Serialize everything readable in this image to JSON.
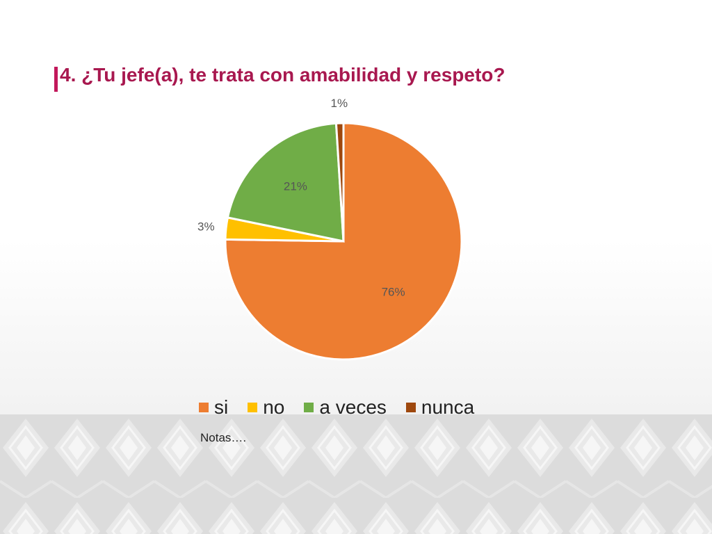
{
  "slide": {
    "title": "4. ¿Tu jefe(a), te trata con amabilidad y respeto?",
    "notes": "Notas…."
  },
  "colors": {
    "accent": "#c2185b",
    "title": "#a8184f",
    "si": "#ed7d31",
    "no": "#ffc000",
    "a_veces": "#70ad47",
    "nunca": "#9e480e"
  },
  "chart_data": {
    "type": "pie",
    "title": "",
    "categories": [
      "si",
      "no",
      "a veces",
      "nunca"
    ],
    "values": [
      76,
      3,
      21,
      1
    ],
    "value_labels": [
      "76%",
      "3%",
      "21%",
      "1%"
    ],
    "colors": [
      "#ed7d31",
      "#ffc000",
      "#70ad47",
      "#9e480e"
    ],
    "start": "12 o'clock, clockwise",
    "legend": {
      "position": "bottom",
      "items": [
        {
          "label": "si",
          "color": "#ed7d31"
        },
        {
          "label": "no",
          "color": "#ffc000"
        },
        {
          "label": "a veces",
          "color": "#70ad47"
        },
        {
          "label": "nunca",
          "color": "#9e480e"
        }
      ]
    }
  }
}
